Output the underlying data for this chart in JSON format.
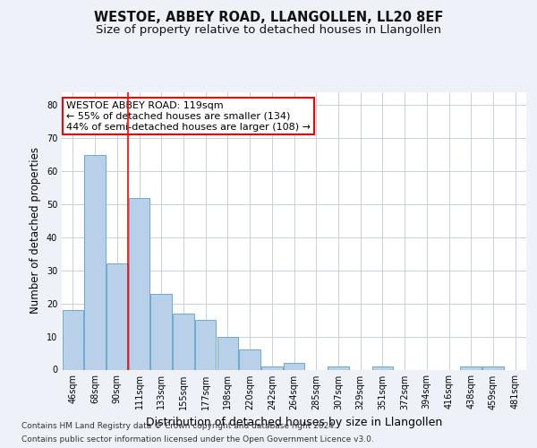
{
  "title_line1": "WESTOE, ABBEY ROAD, LLANGOLLEN, LL20 8EF",
  "title_line2": "Size of property relative to detached houses in Llangollen",
  "xlabel": "Distribution of detached houses by size in Llangollen",
  "ylabel": "Number of detached properties",
  "categories": [
    "46sqm",
    "68sqm",
    "90sqm",
    "111sqm",
    "133sqm",
    "155sqm",
    "177sqm",
    "198sqm",
    "220sqm",
    "242sqm",
    "264sqm",
    "285sqm",
    "307sqm",
    "329sqm",
    "351sqm",
    "372sqm",
    "394sqm",
    "416sqm",
    "438sqm",
    "459sqm",
    "481sqm"
  ],
  "values": [
    18,
    65,
    32,
    52,
    23,
    17,
    15,
    10,
    6,
    1,
    2,
    0,
    1,
    0,
    1,
    0,
    0,
    0,
    1,
    1,
    0
  ],
  "bar_color": "#b8d0e8",
  "bar_edge_color": "#6aabcf",
  "red_line_after_index": 2,
  "ylim": [
    0,
    84
  ],
  "yticks": [
    0,
    10,
    20,
    30,
    40,
    50,
    60,
    70,
    80
  ],
  "annotation_title": "WESTOE ABBEY ROAD: 119sqm",
  "annotation_line2": "← 55% of detached houses are smaller (134)",
  "annotation_line3": "44% of semi-detached houses are larger (108) →",
  "footer_line1": "Contains HM Land Registry data © Crown copyright and database right 2024.",
  "footer_line2": "Contains public sector information licensed under the Open Government Licence v3.0.",
  "background_color": "#eef2f8",
  "plot_bg_color": "#ffffff",
  "grid_color": "#c8d0dc",
  "title_fontsize": 10.5,
  "subtitle_fontsize": 9.5,
  "ylabel_fontsize": 8.5,
  "xlabel_fontsize": 9,
  "tick_fontsize": 7,
  "annotation_fontsize": 8,
  "footer_fontsize": 6.5
}
